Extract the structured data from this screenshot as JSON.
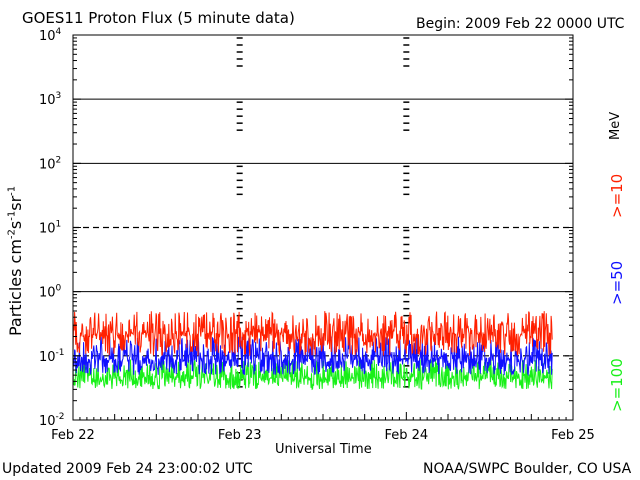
{
  "header": {
    "title": "GOES11 Proton Flux (5 minute data)",
    "begin": "Begin: 2009 Feb 22 0000 UTC"
  },
  "footer": {
    "updated": "Updated 2009 Feb 24 23:00:02 UTC",
    "source": "NOAA/SWPC Boulder, CO USA"
  },
  "colors": {
    "ge10": "#ff2000",
    "ge50": "#1010ff",
    "ge100": "#18f018"
  },
  "chart_data": {
    "type": "line",
    "title": "GOES11 Proton Flux (5 minute data)",
    "xlabel": "Universal Time",
    "ylabel": "Particles cm-2s-1sr-1",
    "yscale": "log",
    "ylim": [
      0.01,
      10000
    ],
    "yticks": [
      {
        "base": "10",
        "exp": "-2"
      },
      {
        "base": "10",
        "exp": "-1"
      },
      {
        "base": "10",
        "exp": "0"
      },
      {
        "base": "10",
        "exp": "1"
      },
      {
        "base": "10",
        "exp": "2"
      },
      {
        "base": "10",
        "exp": "3"
      },
      {
        "base": "10",
        "exp": "4"
      }
    ],
    "xticks": [
      "Feb 22",
      "Feb 23",
      "Feb 24",
      "Feb 25"
    ],
    "xlim": [
      "2009-02-22 00:00",
      "2009-02-25 00:00"
    ],
    "data_end": "2009-02-24 23:00",
    "energy_unit": "MeV",
    "grid": {
      "solid_decades": [
        1,
        100,
        1000
      ],
      "dashed_decades": [
        10,
        0.1
      ]
    },
    "series": [
      {
        "name": ">=10",
        "color": "#ff2000",
        "range": [
          0.1,
          0.5
        ],
        "typical": 0.22
      },
      {
        "name": ">=50",
        "color": "#1010ff",
        "range": [
          0.05,
          0.2
        ],
        "typical": 0.09
      },
      {
        "name": ">=100",
        "color": "#18f018",
        "range": [
          0.03,
          0.09
        ],
        "typical": 0.045
      }
    ]
  }
}
